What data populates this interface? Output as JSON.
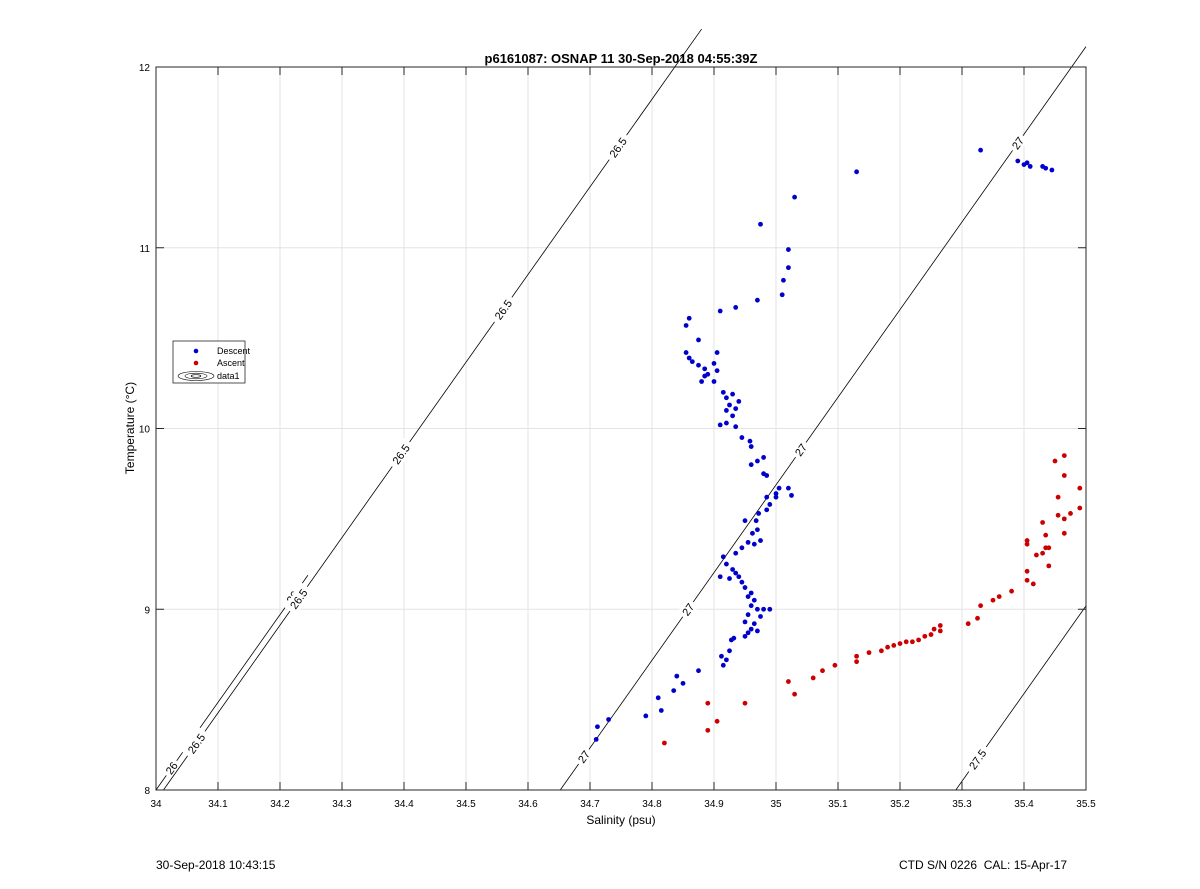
{
  "chart_data": {
    "type": "scatter",
    "title": "p6161087: OSNAP 11 30-Sep-2018 04:55:39Z",
    "xlabel": "Salinity (psu)",
    "ylabel": "Temperature (°C)",
    "xlim": [
      34,
      35.5
    ],
    "ylim": [
      8,
      12
    ],
    "x_ticks": [
      "34",
      "34.1",
      "34.2",
      "34.3",
      "34.4",
      "34.5",
      "34.6",
      "34.7",
      "34.8",
      "34.9",
      "35",
      "35.1",
      "35.2",
      "35.3",
      "35.4",
      "35.5"
    ],
    "y_ticks": [
      "8",
      "9",
      "10",
      "11",
      "12"
    ],
    "grid": true,
    "legend_placement": "left",
    "legend": [
      "Descent",
      "Ascent",
      "data1"
    ],
    "series": [
      {
        "name": "Descent",
        "color": "#0000cc",
        "points": [
          [
            34.71,
            8.28
          ],
          [
            34.712,
            8.35
          ],
          [
            34.73,
            8.39
          ],
          [
            34.79,
            8.41
          ],
          [
            34.81,
            8.51
          ],
          [
            34.815,
            8.44
          ],
          [
            34.835,
            8.55
          ],
          [
            34.84,
            8.63
          ],
          [
            34.85,
            8.59
          ],
          [
            34.875,
            8.66
          ],
          [
            34.915,
            8.69
          ],
          [
            34.912,
            8.74
          ],
          [
            34.92,
            8.72
          ],
          [
            34.925,
            8.77
          ],
          [
            34.928,
            8.83
          ],
          [
            34.932,
            8.84
          ],
          [
            34.95,
            8.85
          ],
          [
            34.955,
            8.87
          ],
          [
            34.96,
            8.89
          ],
          [
            34.97,
            8.88
          ],
          [
            34.95,
            8.93
          ],
          [
            34.965,
            8.92
          ],
          [
            34.975,
            8.96
          ],
          [
            34.97,
            9.0
          ],
          [
            34.98,
            9.0
          ],
          [
            34.99,
            9.0
          ],
          [
            34.955,
            8.97
          ],
          [
            34.96,
            9.02
          ],
          [
            34.965,
            9.05
          ],
          [
            34.955,
            9.07
          ],
          [
            34.96,
            9.09
          ],
          [
            34.95,
            9.12
          ],
          [
            34.945,
            9.15
          ],
          [
            34.94,
            9.18
          ],
          [
            34.935,
            9.2
          ],
          [
            34.93,
            9.22
          ],
          [
            34.925,
            9.17
          ],
          [
            34.92,
            9.25
          ],
          [
            34.915,
            9.29
          ],
          [
            34.91,
            9.18
          ],
          [
            34.935,
            9.31
          ],
          [
            34.945,
            9.34
          ],
          [
            34.955,
            9.37
          ],
          [
            34.965,
            9.36
          ],
          [
            34.975,
            9.38
          ],
          [
            34.962,
            9.42
          ],
          [
            34.97,
            9.44
          ],
          [
            34.968,
            9.49
          ],
          [
            34.95,
            9.49
          ],
          [
            34.972,
            9.53
          ],
          [
            34.985,
            9.55
          ],
          [
            34.99,
            9.58
          ],
          [
            34.985,
            9.62
          ],
          [
            35.0,
            9.62
          ],
          [
            35.0,
            9.64
          ],
          [
            35.005,
            9.67
          ],
          [
            35.02,
            9.67
          ],
          [
            35.025,
            9.63
          ],
          [
            34.98,
            9.75
          ],
          [
            34.985,
            9.74
          ],
          [
            34.98,
            9.84
          ],
          [
            34.97,
            9.82
          ],
          [
            34.96,
            9.8
          ],
          [
            34.96,
            9.9
          ],
          [
            34.958,
            9.93
          ],
          [
            34.945,
            9.95
          ],
          [
            34.935,
            10.01
          ],
          [
            34.92,
            10.03
          ],
          [
            34.93,
            10.07
          ],
          [
            34.91,
            10.02
          ],
          [
            34.92,
            10.1
          ],
          [
            34.925,
            10.13
          ],
          [
            34.935,
            10.11
          ],
          [
            34.94,
            10.15
          ],
          [
            34.92,
            10.17
          ],
          [
            34.93,
            10.19
          ],
          [
            34.915,
            10.2
          ],
          [
            34.9,
            10.26
          ],
          [
            34.905,
            10.32
          ],
          [
            34.885,
            10.29
          ],
          [
            34.88,
            10.26
          ],
          [
            34.89,
            10.3
          ],
          [
            34.875,
            10.35
          ],
          [
            34.865,
            10.37
          ],
          [
            34.86,
            10.39
          ],
          [
            34.855,
            10.42
          ],
          [
            34.885,
            10.33
          ],
          [
            34.9,
            10.36
          ],
          [
            34.905,
            10.42
          ],
          [
            34.875,
            10.49
          ],
          [
            34.855,
            10.57
          ],
          [
            34.86,
            10.61
          ],
          [
            34.91,
            10.65
          ],
          [
            34.935,
            10.67
          ],
          [
            34.97,
            10.71
          ],
          [
            35.01,
            10.74
          ],
          [
            35.012,
            10.82
          ],
          [
            35.02,
            10.89
          ],
          [
            35.02,
            10.99
          ],
          [
            34.975,
            11.13
          ],
          [
            35.03,
            11.28
          ],
          [
            35.13,
            11.42
          ],
          [
            35.33,
            11.54
          ],
          [
            35.39,
            11.48
          ],
          [
            35.4,
            11.46
          ],
          [
            35.405,
            11.47
          ],
          [
            35.41,
            11.45
          ],
          [
            35.43,
            11.45
          ],
          [
            35.435,
            11.44
          ],
          [
            35.445,
            11.43
          ]
        ]
      },
      {
        "name": "Ascent",
        "color": "#cc0000",
        "points": [
          [
            34.82,
            8.26
          ],
          [
            34.89,
            8.33
          ],
          [
            34.905,
            8.38
          ],
          [
            34.89,
            8.48
          ],
          [
            34.95,
            8.48
          ],
          [
            35.02,
            8.6
          ],
          [
            35.03,
            8.53
          ],
          [
            35.06,
            8.62
          ],
          [
            35.075,
            8.66
          ],
          [
            35.095,
            8.69
          ],
          [
            35.13,
            8.71
          ],
          [
            35.13,
            8.74
          ],
          [
            35.15,
            8.76
          ],
          [
            35.17,
            8.77
          ],
          [
            35.18,
            8.79
          ],
          [
            35.19,
            8.8
          ],
          [
            35.2,
            8.81
          ],
          [
            35.21,
            8.82
          ],
          [
            35.22,
            8.82
          ],
          [
            35.23,
            8.83
          ],
          [
            35.24,
            8.85
          ],
          [
            35.25,
            8.86
          ],
          [
            35.255,
            8.89
          ],
          [
            35.265,
            8.88
          ],
          [
            35.265,
            8.91
          ],
          [
            35.31,
            8.92
          ],
          [
            35.325,
            8.95
          ],
          [
            35.33,
            9.02
          ],
          [
            35.35,
            9.05
          ],
          [
            35.36,
            9.07
          ],
          [
            35.38,
            9.1
          ],
          [
            35.405,
            9.16
          ],
          [
            35.415,
            9.14
          ],
          [
            35.405,
            9.21
          ],
          [
            35.42,
            9.3
          ],
          [
            35.43,
            9.31
          ],
          [
            35.435,
            9.34
          ],
          [
            35.44,
            9.34
          ],
          [
            35.44,
            9.24
          ],
          [
            35.405,
            9.38
          ],
          [
            35.405,
            9.36
          ],
          [
            35.435,
            9.41
          ],
          [
            35.43,
            9.48
          ],
          [
            35.455,
            9.52
          ],
          [
            35.465,
            9.5
          ],
          [
            35.465,
            9.42
          ],
          [
            35.475,
            9.53
          ],
          [
            35.49,
            9.56
          ],
          [
            35.455,
            9.62
          ],
          [
            35.49,
            9.67
          ],
          [
            35.465,
            9.74
          ],
          [
            35.45,
            9.82
          ],
          [
            35.465,
            9.85
          ]
        ]
      }
    ],
    "density_contours": [
      {
        "value": 26,
        "labels": [
          "26",
          "26"
        ],
        "label_x": [
          34.22,
          34.025
        ],
        "x0": 34.0,
        "x1": 34.245
      },
      {
        "value": 26.5,
        "labels": [
          "26.5",
          "26.5",
          "26.5",
          "26.5",
          "26.5"
        ],
        "label_x": [
          34.065,
          34.23,
          34.395,
          34.56,
          34.745
        ],
        "x0": 34.012,
        "x1": 34.88
      },
      {
        "value": 27,
        "labels": [
          "27",
          "27",
          "27",
          "27"
        ],
        "label_x": [
          34.69,
          34.858,
          35.04,
          35.39
        ],
        "x0": 34.652,
        "x1": 35.5
      },
      {
        "value": 27.5,
        "labels": [
          "27.5"
        ],
        "label_x": [
          35.325
        ],
        "x0": 35.29,
        "x1": 35.5
      }
    ],
    "footer_left": "30-Sep-2018 10:43:15",
    "footer_right": "CTD S/N 0226  CAL: 15-Apr-17"
  }
}
